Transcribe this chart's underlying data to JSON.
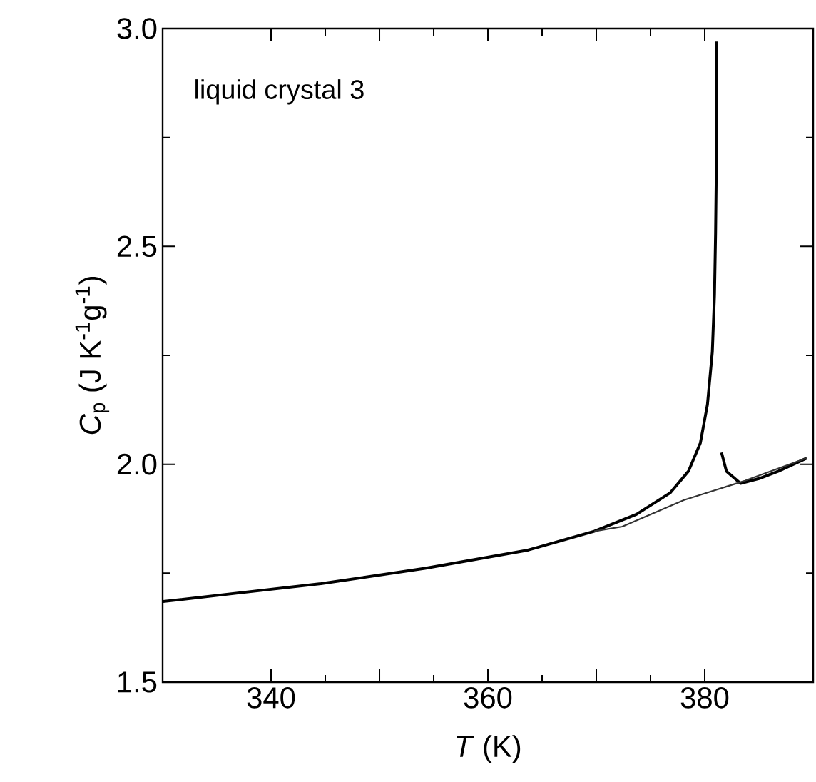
{
  "chart_data": {
    "type": "line",
    "xlabel": "*T* (K)",
    "ylabel": "*C*$_{p}$ (J K$^{-1}$g$^{-1}$)",
    "annotations": [
      "liquid crystal 3"
    ],
    "xlim": [
      330,
      390
    ],
    "ylim": [
      1.5,
      3.0
    ],
    "xticks": [
      340,
      {
        "value": 350,
        "label": null
      },
      360,
      {
        "value": 370,
        "label": null
      },
      380
    ],
    "yticks": [
      1.5,
      {
        "value": 2,
        "label": "2.0"
      },
      2.5,
      {
        "value": 3,
        "label": "3.0"
      }
    ],
    "grid": false,
    "marker": "none",
    "line_style": "solid",
    "series": [
      {
        "color": "#000000",
        "x": [
          330.05,
          336.8,
          344.6,
          354.2,
          363.7,
          369.8,
          373.7,
          376.8,
          378.5,
          379.6,
          380.25,
          380.7,
          380.9,
          381.0,
          381.1,
          381.1,
          null,
          381.55,
          382.0,
          383.3,
          385.0,
          386.8,
          389.4
        ],
        "values": [
          1.685,
          1.704,
          1.726,
          1.761,
          1.803,
          1.846,
          1.885,
          1.934,
          1.984,
          2.049,
          2.137,
          2.258,
          2.389,
          2.53,
          2.75,
          2.97,
          null,
          2.027,
          1.984,
          1.956,
          1.967,
          1.984,
          2.014
        ]
      },
      {
        "color": "#333333",
        "x": [
          369.8,
          372.4,
          378.1,
          383.7,
          389.4
        ],
        "values": [
          1.846,
          1.857,
          1.918,
          1.962,
          2.014
        ]
      }
    ]
  }
}
